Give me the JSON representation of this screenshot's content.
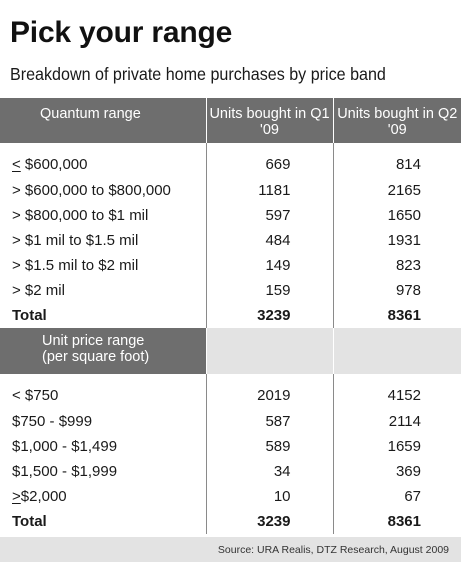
{
  "title": "Pick your range",
  "subtitle": "Breakdown of private home purchases by price band",
  "source": "Source: URA Realis, DTZ Research, August 2009",
  "colors": {
    "header_bg": "#6e6e6e",
    "header_text": "#ffffff",
    "light_band": "#e3e3e3"
  },
  "chart_data": {
    "type": "table",
    "title": "Pick your range",
    "subtitle": "Breakdown of private home purchases by price band",
    "columns": [
      "Quantum range",
      "Units bought in Q1 '09",
      "Units bought in Q2 '09"
    ],
    "sections": [
      {
        "header_top": "Quantum range",
        "header_bottom": "",
        "header_underline": false,
        "rows": [
          {
            "prefix": "",
            "underline_prefix": "<",
            "label": " $600,000",
            "q1": "669",
            "q2": "814"
          },
          {
            "prefix": "> $600,000 to $800,000",
            "underline_prefix": "",
            "label": "",
            "q1": "1181",
            "q2": "2165"
          },
          {
            "prefix": "> $800,000 to $1 mil",
            "underline_prefix": "",
            "label": "",
            "q1": "597",
            "q2": "1650"
          },
          {
            "prefix": "> $1 mil to $1.5 mil",
            "underline_prefix": "",
            "label": "",
            "q1": "484",
            "q2": "1931"
          },
          {
            "prefix": "> $1.5 mil to $2 mil",
            "underline_prefix": "",
            "label": "",
            "q1": "149",
            "q2": "823"
          },
          {
            "prefix": "> $2 mil",
            "underline_prefix": "",
            "label": "",
            "q1": "159",
            "q2": "978"
          }
        ],
        "total": {
          "label": "Total",
          "q1": "3239",
          "q2": "8361"
        }
      },
      {
        "header_top": "Unit price range",
        "header_bottom": "(per square foot)",
        "rows": [
          {
            "prefix": "< $750",
            "underline_prefix": "",
            "label": "",
            "q1": "2019",
            "q2": "4152"
          },
          {
            "prefix": "$750 - $999",
            "underline_prefix": "",
            "label": "",
            "q1": "587",
            "q2": "2114"
          },
          {
            "prefix": "$1,000 - $1,499",
            "underline_prefix": "",
            "label": "",
            "q1": "589",
            "q2": "1659"
          },
          {
            "prefix": "$1,500 - $1,999",
            "underline_prefix": "",
            "label": "",
            "q1": "34",
            "q2": "369"
          },
          {
            "prefix": "",
            "underline_prefix": ">",
            "label": "$2,000",
            "q1": "10",
            "q2": "67"
          }
        ],
        "total": {
          "label": "Total",
          "q1": "3239",
          "q2": "8361"
        }
      }
    ]
  }
}
